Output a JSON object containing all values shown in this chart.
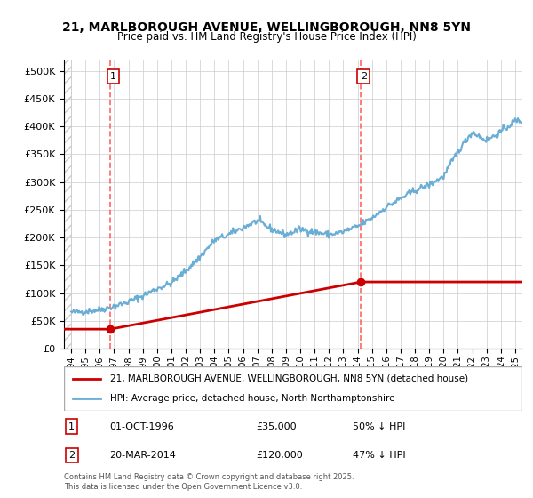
{
  "title_line1": "21, MARLBOROUGH AVENUE, WELLINGBOROUGH, NN8 5YN",
  "title_line2": "Price paid vs. HM Land Registry's House Price Index (HPI)",
  "legend_line1": "21, MARLBOROUGH AVENUE, WELLINGBOROUGH, NN8 5YN (detached house)",
  "legend_line2": "HPI: Average price, detached house, North Northamptonshire",
  "annotation1_label": "1",
  "annotation1_date": "01-OCT-1996",
  "annotation1_price": "£35,000",
  "annotation1_hpi": "50% ↓ HPI",
  "annotation2_label": "2",
  "annotation2_date": "20-MAR-2014",
  "annotation2_price": "£120,000",
  "annotation2_hpi": "47% ↓ HPI",
  "footer": "Contains HM Land Registry data © Crown copyright and database right 2025.\nThis data is licensed under the Open Government Licence v3.0.",
  "hpi_color": "#6aaed6",
  "price_color": "#cc0000",
  "vline_color": "#ff6666",
  "marker_color": "#cc0000",
  "background_hatch_color": "#e8e8e8",
  "ylim": [
    0,
    520000
  ],
  "yticks": [
    0,
    50000,
    100000,
    150000,
    200000,
    250000,
    300000,
    350000,
    400000,
    450000,
    500000
  ],
  "sale1_x": 1996.75,
  "sale1_y": 35000,
  "sale2_x": 2014.22,
  "sale2_y": 120000,
  "xmin": 1993.5,
  "xmax": 2025.5
}
